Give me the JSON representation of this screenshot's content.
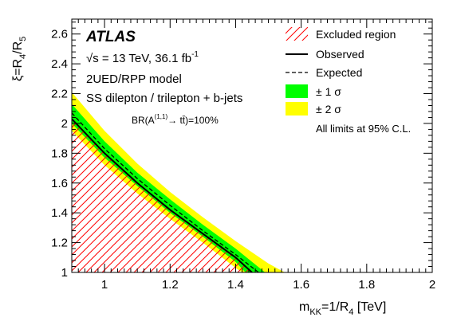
{
  "chart_data": {
    "type": "line",
    "experiment": "ATLAS",
    "energy_text": "√s = 13 TeV, 36.1 fb",
    "lumi_exponent": "-1",
    "model_text": "2UED/RPP model",
    "channel_text": "SS dilepton / trilepton + b-jets",
    "br_prefix": "BR(A",
    "br_superscript": "(1,1)",
    "br_arrow": "→",
    "br_suffix": " tt̄)=100%",
    "xlabel": {
      "base": "m",
      "sub": "KK",
      "mid": "=1/R",
      "sub2": "4",
      "unit": " [TeV]"
    },
    "ylabel": {
      "p1": "ξ=R",
      "sub1": "4",
      "p2": "/R",
      "sub2": "5"
    },
    "xlim": [
      0.9,
      2.0
    ],
    "ylim": [
      1.0,
      2.7
    ],
    "x_ticks": [
      1.0,
      1.2,
      1.4,
      1.6,
      1.8,
      2.0
    ],
    "x_tick_labels": [
      "1",
      "1.2",
      "1.4",
      "1.6",
      "1.8",
      "2"
    ],
    "y_ticks": [
      1.2,
      1.4,
      1.6,
      1.8,
      2.0,
      2.2,
      2.4,
      2.6
    ],
    "y_tick_labels": [
      "1.2",
      "1.4",
      "1.6",
      "1.8",
      "2",
      "2.2",
      "2.4",
      "2.6"
    ],
    "legend": {
      "excluded": "Excluded region",
      "observed": "Observed",
      "expected": "Expected",
      "sigma1": "± 1 σ",
      "sigma2": "± 2 σ",
      "note": "All limits at 95% C.L."
    },
    "legend_position": "top-right",
    "colors": {
      "sigma1": "#00ff00",
      "sigma2": "#ffff00",
      "excluded": "#ff0000",
      "line": "#000000"
    },
    "observed": {
      "x": [
        0.9,
        1.0,
        1.1,
        1.2,
        1.3,
        1.4,
        1.45
      ],
      "y": [
        2.03,
        1.8,
        1.6,
        1.42,
        1.26,
        1.1,
        1.0
      ]
    },
    "expected": {
      "x": [
        0.9,
        1.0,
        1.1,
        1.2,
        1.3,
        1.4,
        1.47
      ],
      "y": [
        2.07,
        1.83,
        1.63,
        1.45,
        1.28,
        1.12,
        1.0
      ]
    },
    "band_1sigma_up": {
      "x": [
        0.9,
        1.0,
        1.1,
        1.2,
        1.3,
        1.4,
        1.49
      ],
      "y": [
        2.13,
        1.88,
        1.67,
        1.49,
        1.32,
        1.16,
        1.0
      ]
    },
    "band_1sigma_down": {
      "x": [
        0.9,
        1.0,
        1.1,
        1.2,
        1.3,
        1.4,
        1.43
      ],
      "y": [
        2.0,
        1.77,
        1.58,
        1.4,
        1.24,
        1.07,
        1.0
      ]
    },
    "band_2sigma_up": {
      "x": [
        0.9,
        1.0,
        1.1,
        1.2,
        1.3,
        1.4,
        1.5,
        1.55
      ],
      "y": [
        2.21,
        1.95,
        1.73,
        1.54,
        1.37,
        1.21,
        1.06,
        1.0
      ]
    },
    "band_2sigma_down": {
      "x": [
        0.9,
        1.0,
        1.1,
        1.2,
        1.3,
        1.4,
        1.42
      ],
      "y": [
        1.95,
        1.72,
        1.53,
        1.36,
        1.2,
        1.03,
        1.0
      ]
    }
  }
}
